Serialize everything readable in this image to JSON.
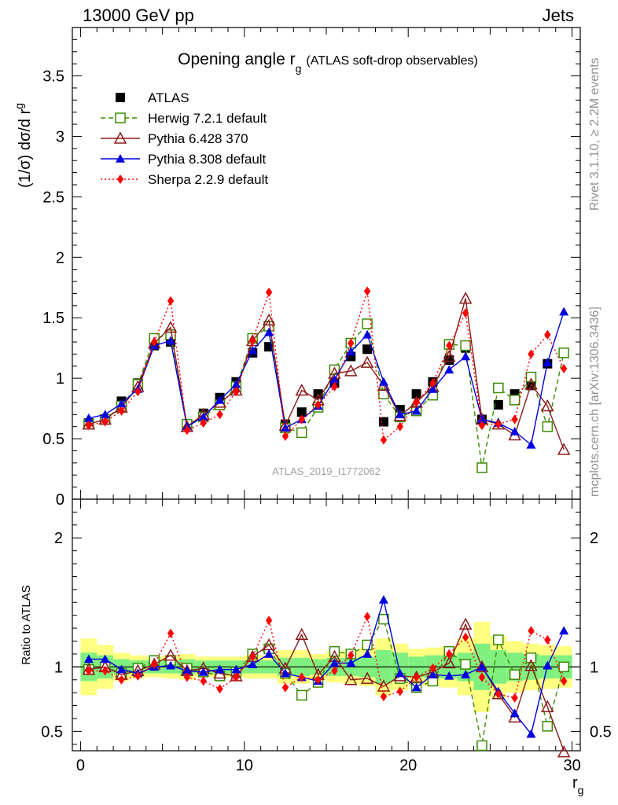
{
  "header": {
    "left": "13000 GeV pp",
    "right": "Jets"
  },
  "side": {
    "rivet": "Rivet 3.1.10, ≥ 2.2M events",
    "mcplots": "mcplots.cern.ch [arXiv:1306.3436]"
  },
  "chart_data": [
    {
      "type": "scatter",
      "title": "Opening angle r",
      "title_sub": "g",
      "title_suffix": "(ATLAS soft-drop observables)",
      "watermark": "ATLAS_2019_I1772062",
      "ylabel": "(1/σ) dσ/d r",
      "ylabel_sub": "g",
      "xlim": [
        -0.5,
        30.5
      ],
      "ylim": [
        0,
        3.9
      ],
      "yticks": [
        "0",
        "0.5",
        "1",
        "1.5",
        "2",
        "2.5",
        "3",
        "3.5"
      ],
      "legend_position": "top-left",
      "series": [
        {
          "name": "ATLAS",
          "color": "#000000",
          "marker": "square",
          "line": "none",
          "x": [
            0.5,
            1.5,
            2.5,
            3.5,
            4.5,
            5.5,
            6.5,
            7.5,
            8.5,
            9.5,
            10.5,
            11.5,
            12.5,
            13.5,
            14.5,
            15.5,
            16.5,
            17.5,
            18.5,
            19.5,
            20.5,
            21.5,
            22.5,
            23.5,
            24.5,
            25.5,
            26.5,
            27.5,
            28.5,
            29.5
          ],
          "y": [
            0.63,
            0.66,
            0.81,
            0.96,
            1.27,
            1.3,
            0.62,
            0.71,
            0.84,
            0.97,
            1.21,
            1.26,
            0.62,
            0.72,
            0.87,
            0.96,
            1.18,
            1.24,
            0.64,
            0.74,
            0.87,
            0.97,
            1.15,
            1.25,
            0.66,
            0.78,
            0.87,
            0.94,
            1.12,
            1.21
          ]
        },
        {
          "name": "Herwig 7.2.1 default",
          "color": "#3a8a00",
          "marker": "open-square",
          "line": "dashed",
          "x": [
            0.5,
            1.5,
            2.5,
            3.5,
            4.5,
            5.5,
            6.5,
            7.5,
            8.5,
            9.5,
            10.5,
            11.5,
            12.5,
            13.5,
            14.5,
            15.5,
            16.5,
            17.5,
            18.5,
            19.5,
            20.5,
            21.5,
            22.5,
            23.5,
            24.5,
            25.5,
            26.5,
            27.5,
            28.5,
            29.5
          ],
          "y": [
            0.62,
            0.66,
            0.77,
            0.95,
            1.33,
            1.36,
            0.62,
            0.68,
            0.78,
            0.93,
            1.33,
            1.43,
            0.59,
            0.55,
            0.76,
            1.07,
            1.29,
            1.45,
            0.87,
            0.68,
            0.73,
            0.86,
            1.28,
            1.27,
            0.26,
            0.92,
            0.82,
            1.01,
            0.6,
            1.21
          ]
        },
        {
          "name": "Pythia 6.428 370",
          "color": "#8b1a1a",
          "marker": "open-triangle",
          "line": "solid",
          "x": [
            0.5,
            1.5,
            2.5,
            3.5,
            4.5,
            5.5,
            6.5,
            7.5,
            8.5,
            9.5,
            10.5,
            11.5,
            12.5,
            13.5,
            14.5,
            15.5,
            16.5,
            17.5,
            18.5,
            19.5,
            20.5,
            21.5,
            22.5,
            23.5,
            24.5,
            25.5,
            26.5,
            27.5,
            28.5,
            29.5
          ],
          "y": [
            0.62,
            0.66,
            0.76,
            0.93,
            1.29,
            1.42,
            0.6,
            0.7,
            0.8,
            0.9,
            1.31,
            1.48,
            0.61,
            0.9,
            0.82,
            1.04,
            1.06,
            1.13,
            0.94,
            0.69,
            0.8,
            0.93,
            1.18,
            1.66,
            0.66,
            0.62,
            0.53,
            0.95,
            0.77,
            0.41
          ]
        },
        {
          "name": "Pythia 8.308 default",
          "color": "#0000e0",
          "marker": "triangle",
          "line": "solid",
          "x": [
            0.5,
            1.5,
            2.5,
            3.5,
            4.5,
            5.5,
            6.5,
            7.5,
            8.5,
            9.5,
            10.5,
            11.5,
            12.5,
            13.5,
            14.5,
            15.5,
            16.5,
            17.5,
            18.5,
            19.5,
            20.5,
            21.5,
            22.5,
            23.5,
            24.5,
            25.5,
            26.5,
            27.5,
            28.5,
            29.5
          ],
          "y": [
            0.67,
            0.7,
            0.79,
            0.91,
            1.27,
            1.31,
            0.6,
            0.68,
            0.82,
            0.95,
            1.23,
            1.38,
            0.59,
            0.66,
            0.77,
            0.99,
            1.22,
            1.36,
            0.97,
            0.7,
            0.73,
            0.91,
            1.07,
            1.18,
            0.66,
            0.63,
            0.56,
            0.45,
            1.13,
            1.55
          ]
        },
        {
          "name": "Sherpa 2.2.9 default",
          "color": "#ff0000",
          "marker": "diamond",
          "line": "dotted",
          "x": [
            0.5,
            1.5,
            2.5,
            3.5,
            4.5,
            5.5,
            6.5,
            7.5,
            8.5,
            9.5,
            10.5,
            11.5,
            12.5,
            13.5,
            14.5,
            15.5,
            16.5,
            17.5,
            18.5,
            19.5,
            20.5,
            21.5,
            22.5,
            23.5,
            24.5,
            25.5,
            26.5,
            27.5,
            28.5,
            29.5
          ],
          "y": [
            0.61,
            0.64,
            0.73,
            0.89,
            1.3,
            1.64,
            0.57,
            0.63,
            0.7,
            0.89,
            1.31,
            1.71,
            0.52,
            0.66,
            0.78,
            0.93,
            1.29,
            1.72,
            0.49,
            0.6,
            0.8,
            0.96,
            1.27,
            1.54,
            0.61,
            0.62,
            0.66,
            1.2,
            1.36,
            1.08
          ]
        }
      ]
    },
    {
      "type": "scatter",
      "ylabel": "Ratio to ATLAS",
      "xlabel": "r",
      "xlabel_sub": "g",
      "xlim": [
        -0.5,
        30.5
      ],
      "ylim": [
        0.35,
        2.3
      ],
      "xticks": [
        "0",
        "10",
        "20",
        "30"
      ],
      "yticks": [
        "0.5",
        "1",
        "2"
      ],
      "reference_line": 1,
      "band_color_inner": "#7ff07f",
      "band_color_outer": "#ffff80",
      "bands": {
        "x": [
          0.5,
          1.5,
          2.5,
          3.5,
          4.5,
          5.5,
          6.5,
          7.5,
          8.5,
          9.5,
          10.5,
          11.5,
          12.5,
          13.5,
          14.5,
          15.5,
          16.5,
          17.5,
          18.5,
          19.5,
          20.5,
          21.5,
          22.5,
          23.5,
          24.5,
          25.5,
          26.5,
          27.5,
          28.5,
          29.5
        ],
        "inner": [
          0.11,
          0.09,
          0.06,
          0.05,
          0.05,
          0.05,
          0.06,
          0.05,
          0.05,
          0.05,
          0.05,
          0.05,
          0.07,
          0.07,
          0.06,
          0.07,
          0.07,
          0.08,
          0.13,
          0.11,
          0.08,
          0.09,
          0.09,
          0.11,
          0.18,
          0.13,
          0.11,
          0.1,
          0.09,
          0.09
        ],
        "outer": [
          0.22,
          0.17,
          0.11,
          0.09,
          0.08,
          0.09,
          0.1,
          0.08,
          0.08,
          0.08,
          0.09,
          0.09,
          0.13,
          0.13,
          0.1,
          0.12,
          0.13,
          0.15,
          0.22,
          0.18,
          0.14,
          0.15,
          0.16,
          0.22,
          0.35,
          0.24,
          0.2,
          0.18,
          0.17,
          0.16
        ]
      },
      "series": [
        {
          "name": "Herwig 7.2.1 default",
          "color": "#3a8a00",
          "marker": "open-square",
          "line": "dashed",
          "x": [
            0.5,
            1.5,
            2.5,
            3.5,
            4.5,
            5.5,
            6.5,
            7.5,
            8.5,
            9.5,
            10.5,
            11.5,
            12.5,
            13.5,
            14.5,
            15.5,
            16.5,
            17.5,
            18.5,
            19.5,
            20.5,
            21.5,
            22.5,
            23.5,
            24.5,
            25.5,
            26.5,
            27.5,
            28.5,
            29.5
          ],
          "y": [
            0.98,
            1.0,
            0.95,
            0.99,
            1.05,
            1.05,
            0.99,
            0.96,
            0.93,
            0.96,
            1.1,
            1.14,
            0.95,
            0.78,
            0.88,
            1.12,
            1.1,
            1.17,
            1.37,
            0.91,
            0.84,
            0.89,
            1.12,
            1.02,
            0.39,
            1.21,
            0.94,
            1.07,
            0.54,
            1.0
          ]
        },
        {
          "name": "Pythia 6.428 370",
          "color": "#8b1a1a",
          "marker": "open-triangle",
          "line": "solid",
          "x": [
            0.5,
            1.5,
            2.5,
            3.5,
            4.5,
            5.5,
            6.5,
            7.5,
            8.5,
            9.5,
            10.5,
            11.5,
            12.5,
            13.5,
            14.5,
            15.5,
            16.5,
            17.5,
            18.5,
            19.5,
            20.5,
            21.5,
            22.5,
            23.5,
            24.5,
            25.5,
            26.5,
            27.5,
            28.5,
            29.5
          ],
          "y": [
            0.98,
            1.0,
            0.94,
            0.97,
            1.02,
            1.09,
            0.97,
            0.99,
            0.95,
            0.93,
            1.08,
            1.17,
            0.99,
            1.25,
            0.94,
            1.08,
            0.9,
            0.91,
            0.85,
            0.93,
            0.92,
            0.96,
            1.03,
            1.33,
            1.0,
            0.79,
            0.61,
            1.01,
            0.69,
            0.34
          ]
        },
        {
          "name": "Pythia 8.308 default",
          "color": "#0000e0",
          "marker": "triangle",
          "line": "solid",
          "x": [
            0.5,
            1.5,
            2.5,
            3.5,
            4.5,
            5.5,
            6.5,
            7.5,
            8.5,
            9.5,
            10.5,
            11.5,
            12.5,
            13.5,
            14.5,
            15.5,
            16.5,
            17.5,
            18.5,
            19.5,
            20.5,
            21.5,
            22.5,
            23.5,
            24.5,
            25.5,
            26.5,
            27.5,
            28.5,
            29.5
          ],
          "y": [
            1.06,
            1.06,
            0.98,
            0.95,
            1.0,
            1.01,
            0.97,
            0.96,
            0.98,
            0.98,
            1.02,
            1.1,
            0.95,
            0.92,
            0.89,
            1.03,
            1.03,
            1.1,
            1.52,
            0.95,
            0.84,
            0.94,
            0.93,
            0.94,
            1.0,
            0.81,
            0.64,
            0.48,
            1.01,
            1.28
          ]
        },
        {
          "name": "Sherpa 2.2.9 default",
          "color": "#ff0000",
          "marker": "diamond",
          "line": "dotted",
          "x": [
            0.5,
            1.5,
            2.5,
            3.5,
            4.5,
            5.5,
            6.5,
            7.5,
            8.5,
            9.5,
            10.5,
            11.5,
            12.5,
            13.5,
            14.5,
            15.5,
            16.5,
            17.5,
            18.5,
            19.5,
            20.5,
            21.5,
            22.5,
            23.5,
            24.5,
            25.5,
            26.5,
            27.5,
            28.5,
            29.5
          ],
          "y": [
            0.97,
            0.97,
            0.9,
            0.93,
            1.02,
            1.26,
            0.92,
            0.89,
            0.83,
            0.92,
            1.08,
            1.36,
            0.84,
            0.92,
            0.9,
            0.97,
            1.09,
            1.39,
            0.77,
            0.81,
            0.92,
            0.99,
            1.1,
            1.23,
            0.92,
            0.79,
            0.76,
            1.28,
            1.21,
            0.89
          ]
        }
      ]
    }
  ]
}
